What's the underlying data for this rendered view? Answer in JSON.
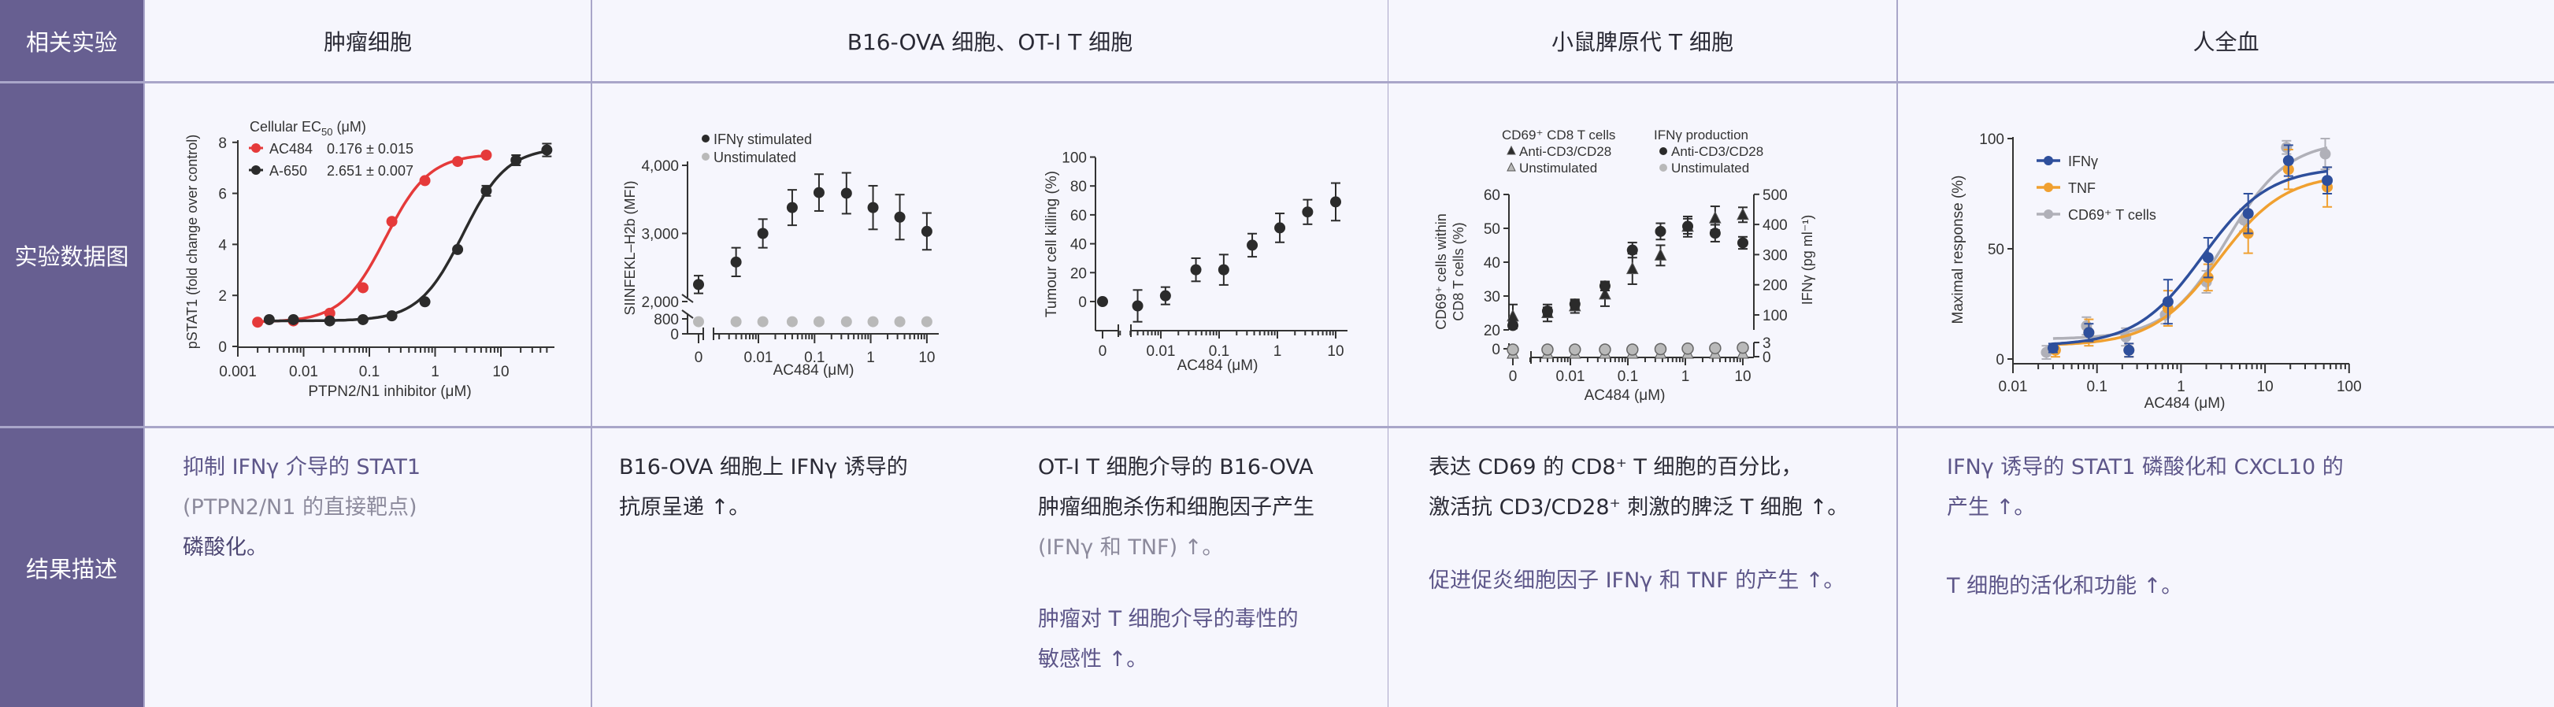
{
  "row_labels": {
    "experiment": "相关实验",
    "data_figure": "实验数据图",
    "result": "结果描述"
  },
  "columns": [
    {
      "header": "肿瘤细胞",
      "result_lines": [
        "抑制 IFNγ 介导的 STAT1",
        "(PTPN2/N1 的直接靶点)",
        "磷酸化。"
      ]
    },
    {
      "header": "B16-OVA 细胞、OT-I T 细胞",
      "result_a_lines": [
        "B16-OVA 细胞上 IFNγ 诱导的",
        "抗原呈递 ↑。"
      ],
      "result_b_lines": [
        "OT-I T 细胞介导的 B16-OVA",
        "肿瘤细胞杀伤和细胞因子产生",
        "(IFNγ 和 TNF) ↑。"
      ],
      "result_b2_lines": [
        "肿瘤对 T 细胞介导的毒性的",
        "敏感性 ↑。"
      ]
    },
    {
      "header": "小鼠脾原代 T 细胞",
      "result_lines": [
        "表达 CD69 的 CD8⁺ T 细胞的百分比，",
        "激活抗 CD3/CD28⁺ 刺激的脾泛 T 细胞 ↑。"
      ],
      "result2_lines": [
        "促进促炎细胞因子 IFNγ 和 TNF 的产生 ↑。"
      ]
    },
    {
      "header": "人全血",
      "result_lines": [
        "IFNγ 诱导的 STAT1 磷酸化和 CXCL10 的",
        "产生 ↑。"
      ],
      "result2_lines": [
        "T 细胞的活化和功能 ↑。"
      ]
    }
  ],
  "colors": {
    "sidebar": "#675f91",
    "red": "#e53a3a",
    "black": "#2b2b2b",
    "unstim": "#b9b9b9",
    "blue": "#2e4f9c",
    "orange": "#f0a030",
    "grey": "#b0b0b8"
  },
  "chart_data": [
    {
      "id": "pstat1",
      "type": "scatter",
      "xscale": "log",
      "xlabel": "PTPN2/N1 inhibitor (μM)",
      "ylabel": "pSTAT1 (fold change over control)",
      "xticks": [
        [
          0.001,
          "0.001"
        ],
        [
          0.01,
          "0.01"
        ],
        [
          0.1,
          "0.1"
        ],
        [
          1,
          "1"
        ],
        [
          10,
          "10"
        ]
      ],
      "yticks": [
        [
          0,
          "0"
        ],
        [
          2,
          "2"
        ],
        [
          4,
          "4"
        ],
        [
          6,
          "6"
        ],
        [
          8,
          "8"
        ]
      ],
      "ylim": [
        0,
        8
      ],
      "xlim": [
        0.001,
        50
      ],
      "legend_title": "Cellular EC",
      "legend_title_sub": "50",
      "legend_title_unit": " (μM)",
      "series": [
        {
          "name": "AC484",
          "ec50": "0.176 ± 0.015",
          "color": "#e53a3a",
          "marker": "circle",
          "fit": true,
          "points": [
            [
              0.002,
              0.95,
              0
            ],
            [
              0.007,
              1.0,
              0
            ],
            [
              0.025,
              1.3,
              0
            ],
            [
              0.08,
              2.3,
              0
            ],
            [
              0.22,
              4.9,
              0
            ],
            [
              0.7,
              6.5,
              0
            ],
            [
              2.2,
              7.25,
              0
            ],
            [
              6,
              7.5,
              0
            ]
          ]
        },
        {
          "name": "A-650",
          "ec50": "2.651 ± 0.007",
          "color": "#2b2b2b",
          "marker": "circle",
          "fit": true,
          "points": [
            [
              0.003,
              1.05,
              0
            ],
            [
              0.007,
              1.05,
              0
            ],
            [
              0.025,
              1.0,
              0
            ],
            [
              0.08,
              1.05,
              0
            ],
            [
              0.22,
              1.2,
              0
            ],
            [
              0.7,
              1.75,
              0
            ],
            [
              2.2,
              3.8,
              0
            ],
            [
              6,
              6.1,
              0.2
            ],
            [
              17,
              7.3,
              0.2
            ],
            [
              50,
              7.7,
              0.25
            ]
          ]
        }
      ]
    },
    {
      "id": "siinfekl",
      "type": "scatter",
      "xscale": "log",
      "axis_breaks": true,
      "xlabel": "AC484 (μM)",
      "ylabel": "SIINFEKL–H2b (MFI)",
      "xticks": [
        [
          0,
          "0"
        ],
        [
          0.01,
          "0.01"
        ],
        [
          0.1,
          "0.1"
        ],
        [
          1,
          "1"
        ],
        [
          10,
          "10"
        ]
      ],
      "yticks": [
        [
          0,
          "0"
        ],
        [
          800,
          "800"
        ],
        [
          2000,
          "2,000"
        ],
        [
          3000,
          "3,000"
        ],
        [
          4000,
          "4,000"
        ]
      ],
      "series": [
        {
          "name": "IFNγ stimulated",
          "color": "#2b2b2b",
          "marker": "circle",
          "points": [
            [
              0,
              2250,
              130
            ],
            [
              0.004,
              2580,
              210
            ],
            [
              0.012,
              3000,
              210
            ],
            [
              0.04,
              3380,
              260
            ],
            [
              0.12,
              3600,
              270
            ],
            [
              0.37,
              3590,
              300
            ],
            [
              1.1,
              3380,
              320
            ],
            [
              3.3,
              3240,
              330
            ],
            [
              10,
              3030,
              270
            ]
          ]
        },
        {
          "name": "Unstimulated",
          "color": "#b9b9b9",
          "marker": "circle",
          "points": [
            [
              0,
              650,
              0
            ],
            [
              0.004,
              650,
              0
            ],
            [
              0.012,
              650,
              0
            ],
            [
              0.04,
              650,
              0
            ],
            [
              0.12,
              650,
              0
            ],
            [
              0.37,
              650,
              0
            ],
            [
              1.1,
              650,
              0
            ],
            [
              3.3,
              650,
              0
            ],
            [
              10,
              650,
              0
            ]
          ]
        }
      ]
    },
    {
      "id": "killing",
      "type": "scatter",
      "xscale": "log",
      "axis_breaks": true,
      "xlabel": "AC484 (μM)",
      "ylabel": "Tumour cell killing (%)",
      "xticks": [
        [
          0,
          "0"
        ],
        [
          0.01,
          "0.01"
        ],
        [
          0.1,
          "0.1"
        ],
        [
          1,
          "1"
        ],
        [
          10,
          "10"
        ]
      ],
      "yticks": [
        [
          0,
          "0"
        ],
        [
          20,
          "20"
        ],
        [
          40,
          "40"
        ],
        [
          60,
          "60"
        ],
        [
          80,
          "80"
        ],
        [
          100,
          "100"
        ]
      ],
      "series": [
        {
          "color": "#2b2b2b",
          "marker": "circle",
          "points": [
            [
              0,
              0,
              0
            ],
            [
              0.004,
              -3,
              11
            ],
            [
              0.012,
              4,
              6
            ],
            [
              0.04,
              22,
              8
            ],
            [
              0.12,
              22,
              10.5
            ],
            [
              0.37,
              39,
              8
            ],
            [
              1.1,
              51,
              10
            ],
            [
              3.3,
              62,
              8.5
            ],
            [
              10,
              69,
              13
            ]
          ]
        }
      ]
    },
    {
      "id": "cd69",
      "type": "scatter",
      "xscale": "log",
      "axis_breaks": true,
      "xlabel": "AC484 (μM)",
      "ylabel_line1": "CD69⁺ cells within",
      "ylabel_line2": "CD8 T cells (%)",
      "ylabel_right": "IFNγ (pg ml⁻¹)",
      "xticks": [
        [
          0,
          "0"
        ],
        [
          0.01,
          "0.01"
        ],
        [
          0.1,
          "0.1"
        ],
        [
          1,
          "1"
        ],
        [
          10,
          "10"
        ]
      ],
      "yticks": [
        [
          0,
          "0"
        ],
        [
          20,
          "20"
        ],
        [
          30,
          "30"
        ],
        [
          40,
          "40"
        ],
        [
          50,
          "50"
        ],
        [
          60,
          "60"
        ]
      ],
      "yticks_right": [
        [
          0,
          "0"
        ],
        [
          3,
          "3"
        ],
        [
          100,
          "100"
        ],
        [
          200,
          "200"
        ],
        [
          300,
          "300"
        ],
        [
          400,
          "400"
        ],
        [
          500,
          "500"
        ]
      ],
      "legend_groups": [
        {
          "title": "CD69⁺ CD8 T cells",
          "items": [
            "Anti-CD3/CD28",
            "Unstimulated"
          ]
        },
        {
          "title": "IFNγ production",
          "items": [
            "Anti-CD3/CD28",
            "Unstimulated"
          ]
        }
      ],
      "series": [
        {
          "group": "CD69⁺ CD8 T cells",
          "name": "Anti-CD3/CD28",
          "axis": "left",
          "color": "#2b2b2b",
          "marker": "triangle",
          "points": [
            [
              0,
              24,
              3.5
            ],
            [
              0.004,
              25,
              2.5
            ],
            [
              0.012,
              27,
              2
            ],
            [
              0.04,
              30.5,
              3.5
            ],
            [
              0.12,
              38,
              4.5
            ],
            [
              0.37,
              42,
              3
            ],
            [
              1.1,
              50.5,
              3
            ],
            [
              3.3,
              53,
              3.5
            ],
            [
              10,
              54,
              2.2
            ]
          ]
        },
        {
          "group": "CD69⁺ CD8 T cells",
          "name": "Unstimulated",
          "axis": "left",
          "color": "#b9b9b9",
          "marker": "triangle",
          "points": [
            [
              0,
              0,
              0
            ],
            [
              0.004,
              0,
              0
            ],
            [
              0.012,
              0,
              0
            ],
            [
              0.04,
              0,
              0
            ],
            [
              0.12,
              0,
              0
            ],
            [
              0.37,
              0,
              0
            ],
            [
              1.1,
              0,
              0
            ],
            [
              3.3,
              0,
              0
            ],
            [
              10,
              0,
              0
            ]
          ]
        },
        {
          "group": "IFNγ production",
          "name": "Anti-CD3/CD28",
          "axis": "right",
          "color": "#2b2b2b",
          "marker": "circle",
          "points": [
            [
              0,
              65,
              10
            ],
            [
              0.004,
              113,
              12
            ],
            [
              0.012,
              136,
              12
            ],
            [
              0.04,
              196,
              15
            ],
            [
              0.12,
              315,
              25
            ],
            [
              0.37,
              377,
              27
            ],
            [
              1.1,
              394,
              25
            ],
            [
              3.3,
              371,
              28
            ],
            [
              10,
              339,
              20
            ]
          ]
        },
        {
          "group": "IFNγ production",
          "name": "Unstimulated",
          "axis": "right",
          "color": "#b9b9b9",
          "marker": "circle",
          "points": [
            [
              0,
              1.5,
              0
            ],
            [
              0.004,
              1.5,
              0
            ],
            [
              0.012,
              1.5,
              0
            ],
            [
              0.04,
              1.5,
              0
            ],
            [
              0.12,
              1.5,
              0
            ],
            [
              0.37,
              1.6,
              0
            ],
            [
              1.1,
              1.7,
              0
            ],
            [
              3.3,
              1.8,
              0
            ],
            [
              10,
              1.9,
              0
            ]
          ]
        }
      ]
    },
    {
      "id": "maxresp",
      "type": "scatter",
      "xscale": "log",
      "xlabel": "AC484 (μM)",
      "ylabel": "Maximal response (%)",
      "xticks": [
        [
          0.01,
          "0.01"
        ],
        [
          0.1,
          "0.1"
        ],
        [
          1,
          "1"
        ],
        [
          10,
          "10"
        ],
        [
          100,
          "100"
        ]
      ],
      "yticks": [
        [
          0,
          "0"
        ],
        [
          50,
          "50"
        ],
        [
          100,
          "100"
        ]
      ],
      "ylim": [
        0,
        100
      ],
      "xlim": [
        0.01,
        100
      ],
      "series": [
        {
          "name": "CD69⁺ T cells",
          "color": "#b0b0b8",
          "marker": "circle",
          "fit": true,
          "points": [
            [
              0.025,
              3,
              3
            ],
            [
              0.075,
              15,
              4
            ],
            [
              0.22,
              10,
              4
            ],
            [
              0.65,
              20,
              4
            ],
            [
              2.0,
              35,
              5
            ],
            [
              5.6,
              63,
              5
            ],
            [
              18,
              96,
              3
            ],
            [
              52,
              93,
              7
            ]
          ]
        },
        {
          "name": "TNF",
          "color": "#f0a030",
          "marker": "circle",
          "fit": true,
          "points": [
            [
              0.032,
              4,
              3
            ],
            [
              0.08,
              12,
              6
            ],
            [
              0.24,
              4,
              3
            ],
            [
              0.7,
              23,
              8
            ],
            [
              2.1,
              37,
              6
            ],
            [
              6.3,
              57,
              9
            ],
            [
              19,
              86,
              9
            ],
            [
              55,
              78,
              9
            ]
          ]
        },
        {
          "name": "IFNγ",
          "color": "#2e4f9c",
          "marker": "circle",
          "fit": true,
          "points": [
            [
              0.03,
              5,
              2
            ],
            [
              0.08,
              12,
              4
            ],
            [
              0.24,
              4,
              3
            ],
            [
              0.7,
              26,
              10
            ],
            [
              2.1,
              46,
              9
            ],
            [
              6.3,
              66,
              9
            ],
            [
              19,
              90,
              7
            ],
            [
              55,
              81,
              6
            ]
          ]
        }
      ]
    }
  ]
}
